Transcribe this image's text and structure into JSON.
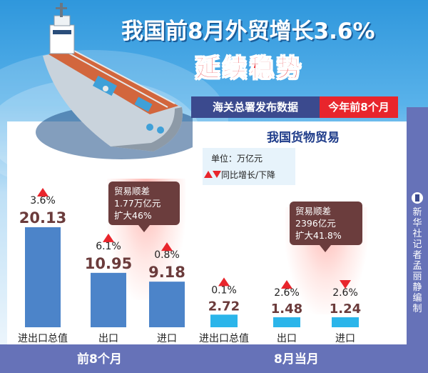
{
  "header": {
    "title": "我国前8月外贸增长3.6%",
    "subtitle": "延续稳势",
    "source_tag": "海关总署发布数据",
    "period_tag": "今年前8个月"
  },
  "section_title": "我国货物贸易",
  "legend": {
    "unit": "单位：万亿元",
    "change_note": "同比增长/下降"
  },
  "credit": "新华社记者 孟丽静编制",
  "colors": {
    "bar_first8": "#4c84c9",
    "bar_august": "#2bb5ea",
    "value_text": "#6b3b3b",
    "up_arrow": "#e8252c",
    "callout_bg": "#6b3d3d"
  },
  "chart_data": [
    {
      "type": "bar",
      "title": "前8个月",
      "categories": [
        "进出口总值",
        "出口",
        "进口"
      ],
      "values": [
        20.13,
        10.95,
        9.18
      ],
      "value_labels": [
        "20.13",
        "10.95",
        "9.18"
      ],
      "changes": [
        "3.6%",
        "6.1%",
        "0.8%"
      ],
      "directions": [
        "up",
        "up",
        "up"
      ],
      "unit": "万亿元",
      "annotation": [
        "贸易顺差",
        "1.77万亿元",
        "扩大46%"
      ]
    },
    {
      "type": "bar",
      "title": "8月当月",
      "categories": [
        "进出口总值",
        "出口",
        "进口"
      ],
      "values": [
        2.72,
        1.48,
        1.24
      ],
      "value_labels": [
        "2.72",
        "1.48",
        "1.24"
      ],
      "changes": [
        "0.1%",
        "2.6%",
        "2.6%"
      ],
      "directions": [
        "up",
        "up",
        "down"
      ],
      "unit": "万亿元",
      "annotation": [
        "贸易顺差",
        "2396亿元",
        "扩大41.8%"
      ]
    }
  ]
}
